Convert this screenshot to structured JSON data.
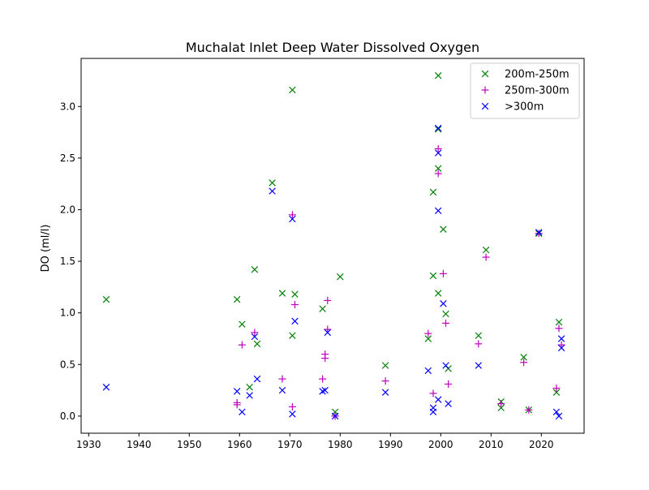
{
  "chart_data": {
    "type": "scatter",
    "title": "Muchalat Inlet Deep Water Dissolved Oxygen",
    "xlabel": "",
    "ylabel": "DO (ml/l)",
    "xlim": [
      1928.5,
      2028.5
    ],
    "ylim": [
      -0.166,
      3.466
    ],
    "xticks": [
      1930,
      1940,
      1950,
      1960,
      1970,
      1980,
      1990,
      2000,
      2010,
      2020
    ],
    "yticks": [
      "0.0",
      "0.5",
      "1.0",
      "1.5",
      "2.0",
      "2.5",
      "3.0"
    ],
    "grid": false,
    "legend": "top-right",
    "series": [
      {
        "name": "200m-250m",
        "color": "#008000",
        "marker": "x",
        "points": [
          [
            1933.5,
            1.13
          ],
          [
            1959.5,
            1.13
          ],
          [
            1960.5,
            0.89
          ],
          [
            1962.0,
            0.28
          ],
          [
            1963.0,
            1.42
          ],
          [
            1963.5,
            0.7
          ],
          [
            1966.5,
            2.26
          ],
          [
            1968.5,
            1.19
          ],
          [
            1970.5,
            3.16
          ],
          [
            1970.5,
            0.78
          ],
          [
            1971.0,
            1.18
          ],
          [
            1976.5,
            1.04
          ],
          [
            1979.0,
            0.04
          ],
          [
            1980.0,
            1.35
          ],
          [
            1989.0,
            0.49
          ],
          [
            1997.5,
            0.75
          ],
          [
            1998.5,
            1.36
          ],
          [
            1998.5,
            2.17
          ],
          [
            1999.5,
            3.3
          ],
          [
            1999.5,
            2.78
          ],
          [
            1999.5,
            2.4
          ],
          [
            1999.5,
            1.19
          ],
          [
            2000.5,
            1.81
          ],
          [
            2001.0,
            0.99
          ],
          [
            2001.5,
            0.46
          ],
          [
            2007.5,
            0.78
          ],
          [
            2009.0,
            1.61
          ],
          [
            2012.0,
            0.08
          ],
          [
            2012.0,
            0.14
          ],
          [
            2016.5,
            0.57
          ],
          [
            2017.5,
            0.06
          ],
          [
            2019.5,
            1.77
          ],
          [
            2023.0,
            0.23
          ],
          [
            2023.5,
            0.91
          ]
        ]
      },
      {
        "name": "250m-300m",
        "color": "#bf00bf",
        "marker": "+",
        "points": [
          [
            1959.5,
            0.13
          ],
          [
            1959.5,
            0.11
          ],
          [
            1960.5,
            0.69
          ],
          [
            1963.0,
            0.81
          ],
          [
            1968.5,
            0.36
          ],
          [
            1970.5,
            1.95
          ],
          [
            1970.5,
            0.09
          ],
          [
            1971.0,
            1.08
          ],
          [
            1976.5,
            0.36
          ],
          [
            1977.0,
            0.56
          ],
          [
            1977.0,
            0.6
          ],
          [
            1977.5,
            0.84
          ],
          [
            1977.5,
            1.12
          ],
          [
            1979.0,
            0.0
          ],
          [
            1989.0,
            0.34
          ],
          [
            1997.5,
            0.8
          ],
          [
            1998.5,
            0.22
          ],
          [
            1999.5,
            2.35
          ],
          [
            1999.5,
            2.59
          ],
          [
            2000.5,
            1.38
          ],
          [
            2001.0,
            0.9
          ],
          [
            2001.5,
            0.31
          ],
          [
            2007.5,
            0.7
          ],
          [
            2009.0,
            1.54
          ],
          [
            2012.0,
            0.12
          ],
          [
            2016.5,
            0.52
          ],
          [
            2017.5,
            0.06
          ],
          [
            2019.5,
            1.77
          ],
          [
            2023.0,
            0.27
          ],
          [
            2023.5,
            0.85
          ],
          [
            2024.0,
            0.69
          ]
        ]
      },
      {
        "name": ">300m",
        "color": "#0000ff",
        "marker": "x",
        "points": [
          [
            1933.5,
            0.28
          ],
          [
            1959.5,
            0.24
          ],
          [
            1960.5,
            0.04
          ],
          [
            1962.0,
            0.2
          ],
          [
            1963.0,
            0.77
          ],
          [
            1963.5,
            0.36
          ],
          [
            1966.5,
            2.18
          ],
          [
            1968.5,
            0.25
          ],
          [
            1970.5,
            1.91
          ],
          [
            1970.5,
            0.02
          ],
          [
            1971.0,
            0.92
          ],
          [
            1976.5,
            0.24
          ],
          [
            1977.0,
            0.25
          ],
          [
            1977.5,
            0.81
          ],
          [
            1979.0,
            0.0
          ],
          [
            1989.0,
            0.23
          ],
          [
            1997.5,
            0.44
          ],
          [
            1998.5,
            0.04
          ],
          [
            1998.5,
            0.08
          ],
          [
            1999.5,
            2.79
          ],
          [
            1999.5,
            2.55
          ],
          [
            1999.5,
            1.99
          ],
          [
            1999.5,
            0.16
          ],
          [
            2000.5,
            1.09
          ],
          [
            2001.0,
            0.49
          ],
          [
            2001.5,
            0.12
          ],
          [
            2007.5,
            0.49
          ],
          [
            2019.5,
            1.78
          ],
          [
            2023.0,
            0.04
          ],
          [
            2023.5,
            0.0
          ],
          [
            2024.0,
            0.75
          ],
          [
            2024.0,
            0.66
          ]
        ]
      }
    ]
  }
}
